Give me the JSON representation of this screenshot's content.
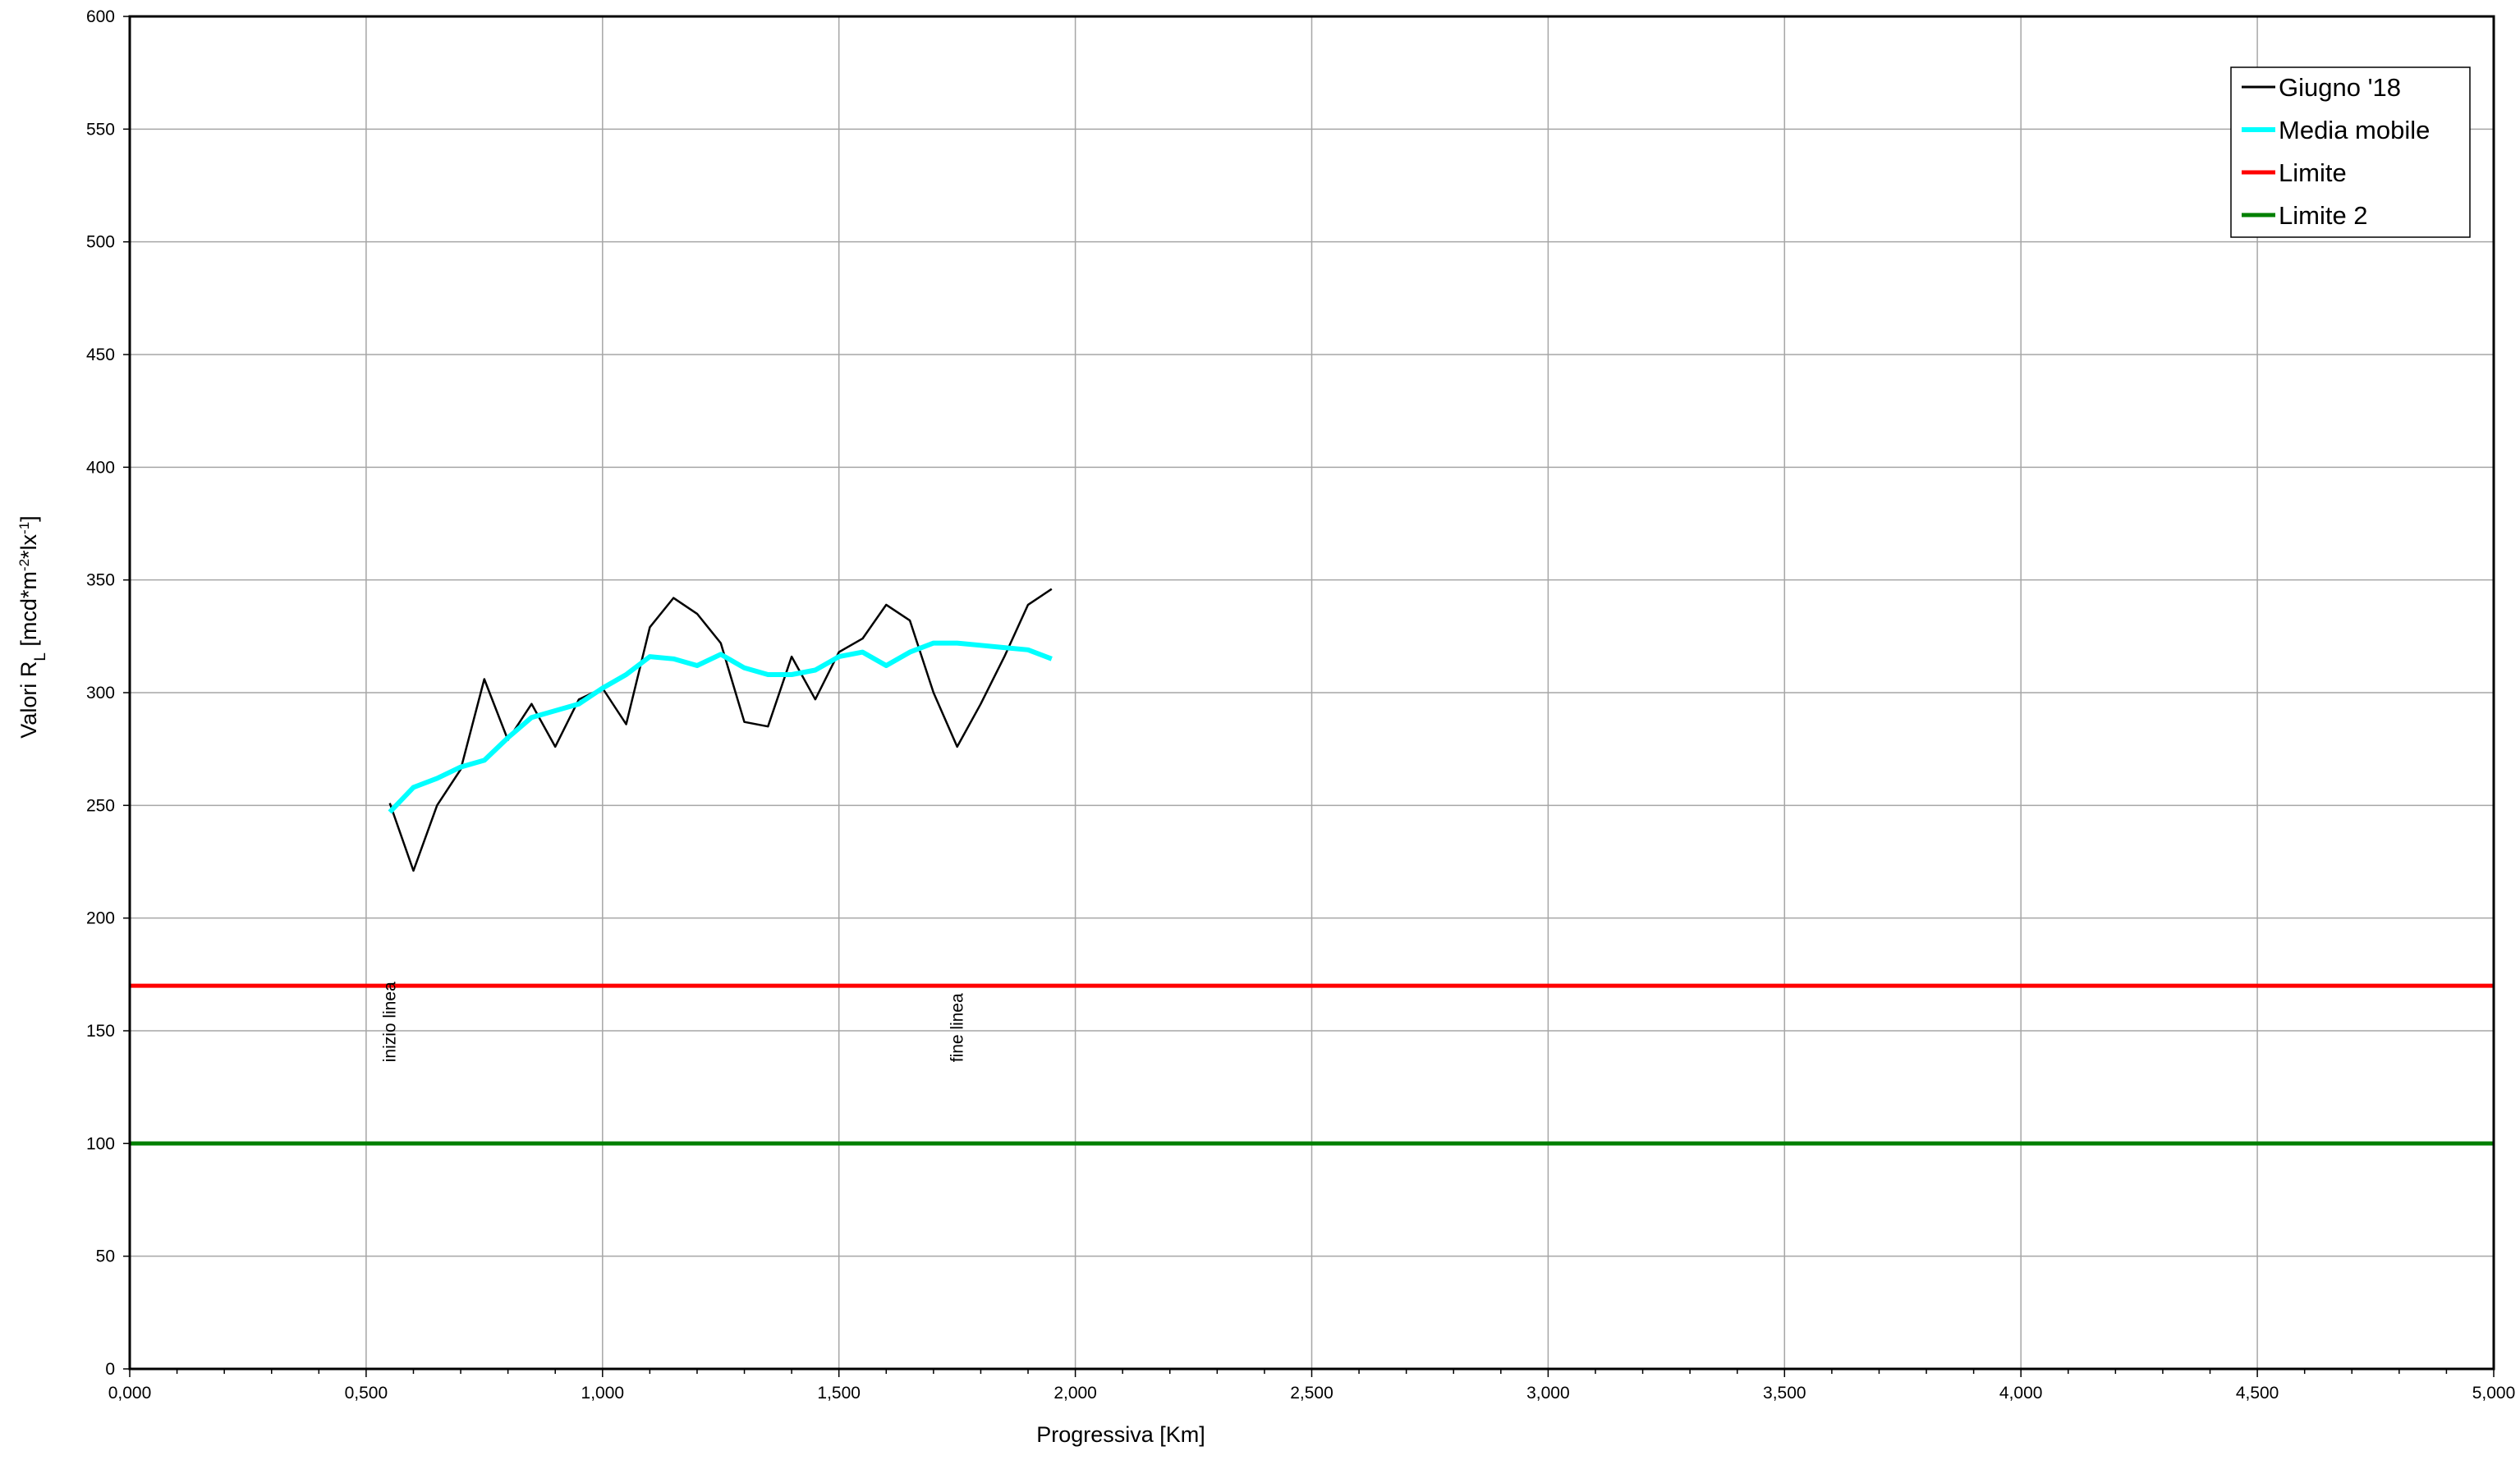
{
  "chart_data": {
    "type": "line",
    "title": "",
    "xlabel": "Progressiva [Km]",
    "ylabel_parts": [
      "Valori R",
      "L",
      " [mcd*m",
      "-2",
      "*lx",
      "-1",
      "]"
    ],
    "xlim": [
      0,
      5
    ],
    "ylim": [
      0,
      600
    ],
    "x_ticks": [
      0,
      0.5,
      1,
      1.5,
      2,
      2.5,
      3,
      3.5,
      4,
      4.5,
      5
    ],
    "x_tick_labels": [
      "0,000",
      "0,500",
      "1,000",
      "1,500",
      "2,000",
      "2,500",
      "3,000",
      "3,500",
      "4,000",
      "4,500",
      "5,000"
    ],
    "y_ticks": [
      0,
      50,
      100,
      150,
      200,
      250,
      300,
      350,
      400,
      450,
      500,
      550,
      600
    ],
    "y_tick_labels": [
      "0",
      "50",
      "100",
      "150",
      "200",
      "250",
      "300",
      "350",
      "400",
      "450",
      "500",
      "550",
      "600"
    ],
    "grid": true,
    "legend_position": "top-right",
    "series": [
      {
        "name": "Giugno '18",
        "color": "#000000",
        "width": 2.5,
        "x": [
          0.55,
          0.6,
          0.65,
          0.7,
          0.75,
          0.8,
          0.85,
          0.9,
          0.95,
          1.0,
          1.05,
          1.1,
          1.15,
          1.2,
          1.25,
          1.3,
          1.35,
          1.4,
          1.45,
          1.5,
          1.55,
          1.6,
          1.65,
          1.7,
          1.75,
          1.8,
          1.85,
          1.9,
          1.95
        ],
        "y": [
          251,
          221,
          250,
          266,
          306,
          279,
          295,
          276,
          297,
          302,
          286,
          329,
          342,
          335,
          322,
          287,
          285,
          316,
          297,
          318,
          324,
          339,
          332,
          300,
          276,
          295,
          316,
          339,
          346
        ]
      },
      {
        "name": "Media mobile",
        "color": "#00ffff",
        "width": 6,
        "x": [
          0.55,
          0.6,
          0.65,
          0.7,
          0.75,
          0.8,
          0.85,
          0.9,
          0.95,
          1.0,
          1.05,
          1.1,
          1.15,
          1.2,
          1.25,
          1.3,
          1.35,
          1.4,
          1.45,
          1.5,
          1.55,
          1.6,
          1.65,
          1.7,
          1.75,
          1.8,
          1.85,
          1.9,
          1.95
        ],
        "y": [
          247,
          258,
          262,
          267,
          270,
          280,
          289,
          292,
          295,
          302,
          308,
          316,
          315,
          312,
          317,
          311,
          308,
          308,
          310,
          316,
          318,
          312,
          318,
          322,
          322,
          321,
          320,
          319,
          315
        ]
      },
      {
        "name": "Limite",
        "color": "#ff0000",
        "width": 5,
        "x": [
          0,
          5
        ],
        "y": [
          170,
          170
        ]
      },
      {
        "name": "Limite 2",
        "color": "#008000",
        "width": 5,
        "x": [
          0,
          5
        ],
        "y": [
          100,
          100
        ]
      }
    ],
    "annotations": [
      {
        "text": "inizio linea",
        "x": 0.55,
        "y": 155
      },
      {
        "text": "fine linea",
        "x": 1.75,
        "y": 155
      }
    ]
  }
}
